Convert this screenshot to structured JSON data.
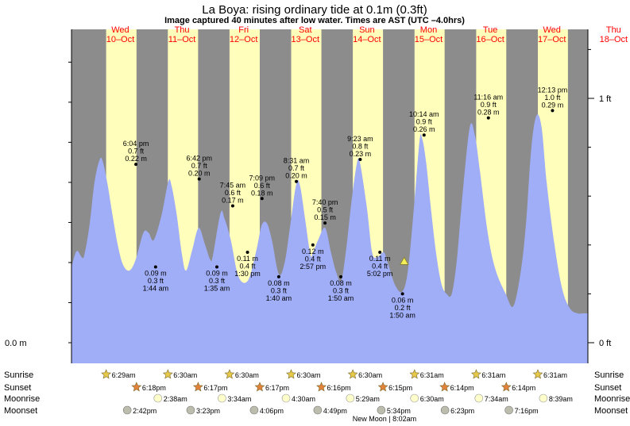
{
  "chart_data": {
    "type": "area",
    "title": "La Boya: rising  ordinary tide at 0.1m (0.3ft)",
    "subtitle": "Image captured 40 minutes after low water. Times are AST (UTC –4.0hrs)",
    "y_unit_left": "m",
    "y_unit_right": "ft",
    "ylim": [
      0,
      1.15
    ],
    "left_tick": "0.0 m",
    "right_ticks": [
      {
        "value": 0.0,
        "label": "0 ft"
      },
      {
        "value": 1.0,
        "label": "1 ft"
      }
    ],
    "days": [
      {
        "dow": "Wed",
        "date": "10–Oct"
      },
      {
        "dow": "Thu",
        "date": "11–Oct"
      },
      {
        "dow": "Fri",
        "date": "12–Oct"
      },
      {
        "dow": "Sat",
        "date": "13–Oct"
      },
      {
        "dow": "Sun",
        "date": "14–Oct"
      },
      {
        "dow": "Mon",
        "date": "15–Oct"
      },
      {
        "dow": "Tue",
        "date": "16–Oct"
      },
      {
        "dow": "Wed",
        "date": "17–Oct"
      },
      {
        "dow": "Thu",
        "date": "18–Oct"
      }
    ],
    "x_range_hours": [
      -7,
      194
    ],
    "now_hour": 122.5,
    "day_bands": [
      {
        "rise": 6.48,
        "set": 18.3
      },
      {
        "rise": 30.5,
        "set": 42.28
      },
      {
        "rise": 54.5,
        "set": 66.28
      },
      {
        "rise": 78.5,
        "set": 90.27
      },
      {
        "rise": 102.5,
        "set": 114.25
      },
      {
        "rise": 126.52,
        "set": 138.23
      },
      {
        "rise": 150.52,
        "set": 162.23
      },
      {
        "rise": 174.52,
        "set": 186.23
      }
    ],
    "curve": [
      [
        -7,
        0.31
      ],
      [
        -5,
        0.375
      ],
      [
        -3,
        0.35
      ],
      [
        -2,
        0.36
      ],
      [
        0,
        0.48
      ],
      [
        2,
        0.66
      ],
      [
        4,
        0.75
      ],
      [
        5.2,
        0.74
      ],
      [
        7,
        0.65
      ],
      [
        9,
        0.52
      ],
      [
        11,
        0.4
      ],
      [
        13,
        0.32
      ],
      [
        15.5,
        0.295
      ],
      [
        18,
        0.34
      ],
      [
        21,
        0.45
      ],
      [
        23,
        0.45
      ],
      [
        25,
        0.42
      ],
      [
        28,
        0.52
      ],
      [
        30.7,
        0.66
      ],
      [
        32,
        0.64
      ],
      [
        34,
        0.52
      ],
      [
        36,
        0.36
      ],
      [
        37.6,
        0.295
      ],
      [
        40,
        0.38
      ],
      [
        42.5,
        0.47
      ],
      [
        45,
        0.4
      ],
      [
        47,
        0.34
      ],
      [
        48,
        0.355
      ],
      [
        51,
        0.53
      ],
      [
        52.5,
        0.51
      ],
      [
        55,
        0.42
      ],
      [
        58,
        0.27
      ],
      [
        61.7,
        0.255
      ],
      [
        65,
        0.38
      ],
      [
        67,
        0.48
      ],
      [
        69,
        0.49
      ],
      [
        71,
        0.42
      ],
      [
        73.7,
        0.28
      ],
      [
        76,
        0.33
      ],
      [
        78,
        0.47
      ],
      [
        80.5,
        0.65
      ],
      [
        82,
        0.64
      ],
      [
        84,
        0.5
      ],
      [
        86,
        0.36
      ],
      [
        87,
        0.37
      ],
      [
        89,
        0.42
      ],
      [
        91.7,
        0.47
      ],
      [
        94,
        0.37
      ],
      [
        96,
        0.29
      ],
      [
        98,
        0.255
      ],
      [
        100,
        0.39
      ],
      [
        102,
        0.58
      ],
      [
        104.2,
        0.74
      ],
      [
        105.4,
        0.73
      ],
      [
        108,
        0.55
      ],
      [
        110,
        0.37
      ],
      [
        112,
        0.35
      ],
      [
        114.5,
        0.37
      ],
      [
        116,
        0.33
      ],
      [
        119,
        0.235
      ],
      [
        121.8,
        0.21
      ],
      [
        124,
        0.3
      ],
      [
        126.5,
        0.58
      ],
      [
        128.5,
        0.83
      ],
      [
        129.5,
        0.835
      ],
      [
        131,
        0.74
      ],
      [
        133,
        0.54
      ],
      [
        135,
        0.36
      ],
      [
        137,
        0.24
      ],
      [
        139,
        0.2
      ],
      [
        141,
        0.2
      ],
      [
        143,
        0.34
      ],
      [
        145,
        0.58
      ],
      [
        148,
        0.88
      ],
      [
        150,
        0.85
      ],
      [
        152,
        0.7
      ],
      [
        155,
        0.45
      ],
      [
        158,
        0.3
      ],
      [
        162,
        0.2
      ],
      [
        165,
        0.15
      ],
      [
        168,
        0.3
      ],
      [
        170,
        0.5
      ],
      [
        172,
        0.8
      ],
      [
        174,
        0.93
      ],
      [
        176,
        0.88
      ],
      [
        178,
        0.65
      ],
      [
        181,
        0.4
      ],
      [
        184,
        0.22
      ],
      [
        187,
        0.14
      ],
      [
        190,
        0.12
      ],
      [
        192,
        0.12
      ],
      [
        194,
        0.12
      ]
    ],
    "events": [
      {
        "hour": 18.07,
        "level": 0.73,
        "lines": [
          "6:04 pm",
          "0.7 ft",
          "0.22 m"
        ],
        "pos": "above"
      },
      {
        "hour": 25.73,
        "level": 0.31,
        "lines": [
          "0.09 m",
          "0.3 ft",
          "1:44 am"
        ],
        "pos": "below"
      },
      {
        "hour": 42.7,
        "level": 0.67,
        "lines": [
          "6:42 pm",
          "0.7 ft",
          "0.20 m"
        ],
        "pos": "above"
      },
      {
        "hour": 49.58,
        "level": 0.31,
        "lines": [
          "0.09 m",
          "0.3 ft",
          "1:35 am"
        ],
        "pos": "below"
      },
      {
        "hour": 55.75,
        "level": 0.56,
        "lines": [
          "7:45 am",
          "0.6 ft",
          "0.17 m"
        ],
        "pos": "above"
      },
      {
        "hour": 61.5,
        "level": 0.37,
        "lines": [
          "0.11 m",
          "0.4 ft",
          "1:30 pm"
        ],
        "pos": "below"
      },
      {
        "hour": 67.15,
        "level": 0.59,
        "lines": [
          "7:09 pm",
          "0.6 ft",
          "0.18 m"
        ],
        "pos": "above"
      },
      {
        "hour": 73.67,
        "level": 0.27,
        "lines": [
          "0.08 m",
          "0.3 ft",
          "1:40 am"
        ],
        "pos": "below"
      },
      {
        "hour": 80.52,
        "level": 0.66,
        "lines": [
          "8:31 am",
          "0.7 ft",
          "0.20 m"
        ],
        "pos": "above"
      },
      {
        "hour": 86.95,
        "level": 0.4,
        "lines": [
          "0.12 m",
          "0.4 ft",
          "2:57 pm"
        ],
        "pos": "below"
      },
      {
        "hour": 91.67,
        "level": 0.49,
        "lines": [
          "7:40 pm",
          "0.5 ft",
          "0.15 m"
        ],
        "pos": "above"
      },
      {
        "hour": 97.83,
        "level": 0.27,
        "lines": [
          "0.08 m",
          "0.3 ft",
          "1:50 am"
        ],
        "pos": "below"
      },
      {
        "hour": 105.38,
        "level": 0.75,
        "lines": [
          "9:23 am",
          "0.8 ft",
          "0.23 m"
        ],
        "pos": "above"
      },
      {
        "hour": 113.03,
        "level": 0.37,
        "lines": [
          "0.11 m",
          "0.4 ft",
          "5:02 pm"
        ],
        "pos": "below"
      },
      {
        "hour": 121.83,
        "level": 0.2,
        "lines": [
          "0.06 m",
          "0.2 ft",
          "1:50 am"
        ],
        "pos": "below"
      },
      {
        "hour": 130.23,
        "level": 0.85,
        "lines": [
          "10:14 am",
          "0.9 ft",
          "0.26 m"
        ],
        "pos": "above"
      },
      {
        "hour": 155.27,
        "level": 0.92,
        "lines": [
          "11:16 am",
          "0.9 ft",
          "0.28 m"
        ],
        "pos": "above"
      },
      {
        "hour": 180.22,
        "level": 0.95,
        "lines": [
          "12:13 pm",
          "1.0 ft",
          "0.29 m"
        ],
        "pos": "above"
      }
    ],
    "rows": [
      {
        "label": "Sunrise",
        "kind": "sun-yellow",
        "items": [
          {
            "hour": 6.48,
            "text": "6:29am"
          },
          {
            "hour": 30.5,
            "text": "6:30am"
          },
          {
            "hour": 54.5,
            "text": "6:30am"
          },
          {
            "hour": 78.5,
            "text": "6:30am"
          },
          {
            "hour": 102.5,
            "text": "6:30am"
          },
          {
            "hour": 126.52,
            "text": "6:31am"
          },
          {
            "hour": 150.52,
            "text": "6:31am"
          },
          {
            "hour": 174.52,
            "text": "6:31am"
          }
        ]
      },
      {
        "label": "Sunset",
        "kind": "sun-orange",
        "items": [
          {
            "hour": 18.3,
            "text": "6:18pm"
          },
          {
            "hour": 42.28,
            "text": "6:17pm"
          },
          {
            "hour": 66.28,
            "text": "6:17pm"
          },
          {
            "hour": 90.27,
            "text": "6:16pm"
          },
          {
            "hour": 114.25,
            "text": "6:15pm"
          },
          {
            "hour": 138.23,
            "text": "6:14pm"
          },
          {
            "hour": 162.23,
            "text": "6:14pm"
          }
        ]
      },
      {
        "label": "Moonrise",
        "kind": "moon-light",
        "items": [
          {
            "hour": 26.63,
            "text": "2:38am"
          },
          {
            "hour": 51.57,
            "text": "3:34am"
          },
          {
            "hour": 76.5,
            "text": "4:30am"
          },
          {
            "hour": 101.48,
            "text": "5:29am"
          },
          {
            "hour": 126.5,
            "text": "6:30am"
          },
          {
            "hour": 151.57,
            "text": "7:34am"
          },
          {
            "hour": 176.65,
            "text": "8:39am"
          }
        ]
      },
      {
        "label": "Moonset",
        "kind": "moon-grey",
        "items": [
          {
            "hour": 14.7,
            "text": "2:42pm"
          },
          {
            "hour": 39.38,
            "text": "3:23pm"
          },
          {
            "hour": 64.1,
            "text": "4:06pm"
          },
          {
            "hour": 88.82,
            "text": "4:49pm"
          },
          {
            "hour": 113.57,
            "text": "5:34pm"
          },
          {
            "hour": 138.38,
            "text": "6:23pm"
          },
          {
            "hour": 163.27,
            "text": "7:16pm"
          }
        ]
      }
    ],
    "new_moon_label": "New Moon | 8:02am",
    "colors": {
      "night": "#8c8c8c",
      "day": "#ffffbb",
      "water": "#a0adf7",
      "date_text": "#ff0000",
      "sun_yellow": "#e7c94a",
      "sun_orange": "#e2823b",
      "moon_light": "#ffffcc",
      "moon_grey": "#bdbdad",
      "now_marker": "#f4f05a"
    }
  }
}
